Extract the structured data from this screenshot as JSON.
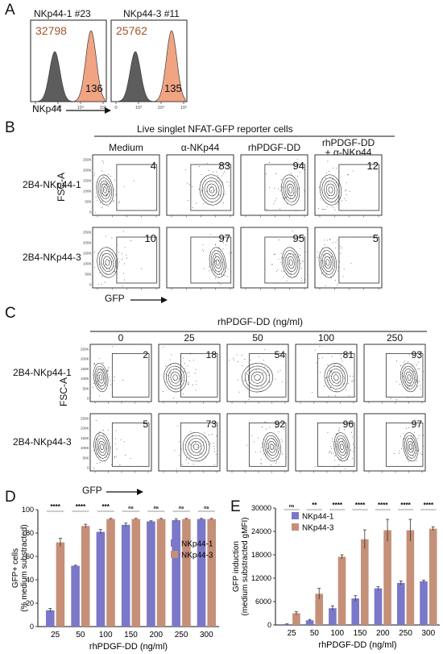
{
  "panelA": {
    "letter": "A",
    "xlabel": "NKp44",
    "histograms": [
      {
        "title": "NKp44-1 #23",
        "mfi_pos": "32798",
        "mfi_neg": "136"
      },
      {
        "title": "NKp44-3 #11",
        "mfi_pos": "25762",
        "mfi_neg": "135"
      }
    ],
    "ticks": [
      "0",
      "10³",
      "10⁴",
      "10⁵"
    ],
    "colors": {
      "positive": "#f0a07c",
      "negative": "#555555"
    }
  },
  "panelB": {
    "letter": "B",
    "header": "Live singlet NFAT-GFP reporter cells",
    "columns": [
      "Medium",
      "α-NKp44",
      "rhPDGF-DD",
      "rhPDGF-DD\n+ α-NKp44"
    ],
    "rows": [
      {
        "label": "2B4-NKp44-1",
        "values": [
          "4",
          "83",
          "94",
          "12"
        ]
      },
      {
        "label": "2B4-NKp44-3",
        "values": [
          "10",
          "97",
          "95",
          "5"
        ]
      }
    ],
    "ylabel": "FSC-A",
    "xlabel": "GFP",
    "yticks": [
      "250K",
      "200K",
      "150K",
      "100K",
      "50K",
      "0"
    ]
  },
  "panelC": {
    "letter": "C",
    "header": "rhPDGF-DD (ng/ml)",
    "columns": [
      "0",
      "25",
      "50",
      "100",
      "250"
    ],
    "rows": [
      {
        "label": "2B4-NKp44-1",
        "values": [
          "2",
          "18",
          "54",
          "81",
          "93"
        ]
      },
      {
        "label": "2B4-NKp44-3",
        "values": [
          "5",
          "73",
          "92",
          "96",
          "97"
        ]
      }
    ],
    "ylabel": "FSC-A",
    "xlabel": "GFP",
    "yticks": [
      "250K",
      "200K",
      "150K",
      "100K",
      "50K",
      "0"
    ]
  },
  "chart_data": [
    {
      "panel": "D",
      "type": "bar",
      "categories": [
        "25",
        "50",
        "100",
        "150",
        "200",
        "250",
        "300"
      ],
      "xlabel": "rhPDGF-DD (ng/ml)",
      "ylabel": "GFP+ cells",
      "ylabel2": "(% medium substracted)",
      "ylim": [
        0,
        100
      ],
      "yticks": [
        0,
        20,
        40,
        60,
        80,
        100
      ],
      "legend_position": "center-right",
      "series": [
        {
          "name": "NKp44-1",
          "values": [
            14,
            52,
            81,
            87,
            90,
            91,
            92
          ],
          "errors": [
            1.5,
            0.5,
            2,
            1.5,
            0.5,
            1,
            0.5
          ],
          "color": "#7b78c9"
        },
        {
          "name": "NKp44-3",
          "values": [
            72,
            86,
            92,
            92,
            92,
            92,
            92
          ],
          "errors": [
            3.5,
            1.5,
            0.5,
            0.5,
            0.5,
            0.5,
            0.5
          ],
          "color": "#c58f78"
        }
      ],
      "significance": [
        "****",
        "****",
        "***",
        "ns",
        "ns",
        "ns",
        "ns"
      ]
    },
    {
      "panel": "E",
      "type": "bar",
      "categories": [
        "25",
        "50",
        "100",
        "150",
        "200",
        "250",
        "300"
      ],
      "xlabel": "rhPDGF-DD (ng/ml)",
      "ylabel": "GFP induction",
      "ylabel2": "(medium substracted gMFI)",
      "ylim": [
        0,
        30000
      ],
      "yticks": [
        0,
        6000,
        12000,
        18000,
        24000,
        30000
      ],
      "legend_position": "top-left",
      "series": [
        {
          "name": "NKp44-1",
          "values": [
            200,
            1200,
            4300,
            6800,
            9400,
            10800,
            11200
          ],
          "errors": [
            80,
            200,
            600,
            700,
            400,
            500,
            300
          ],
          "color": "#7b78c9"
        },
        {
          "name": "NKp44-3",
          "values": [
            3000,
            8000,
            17500,
            22000,
            24300,
            24300,
            24700
          ],
          "errors": [
            400,
            1400,
            500,
            2400,
            2800,
            2800,
            500
          ],
          "color": "#c58f78"
        }
      ],
      "significance": [
        "ns",
        "**",
        "****",
        "****",
        "****",
        "****",
        "****"
      ]
    }
  ],
  "panelD": {
    "letter": "D"
  },
  "panelE": {
    "letter": "E"
  }
}
